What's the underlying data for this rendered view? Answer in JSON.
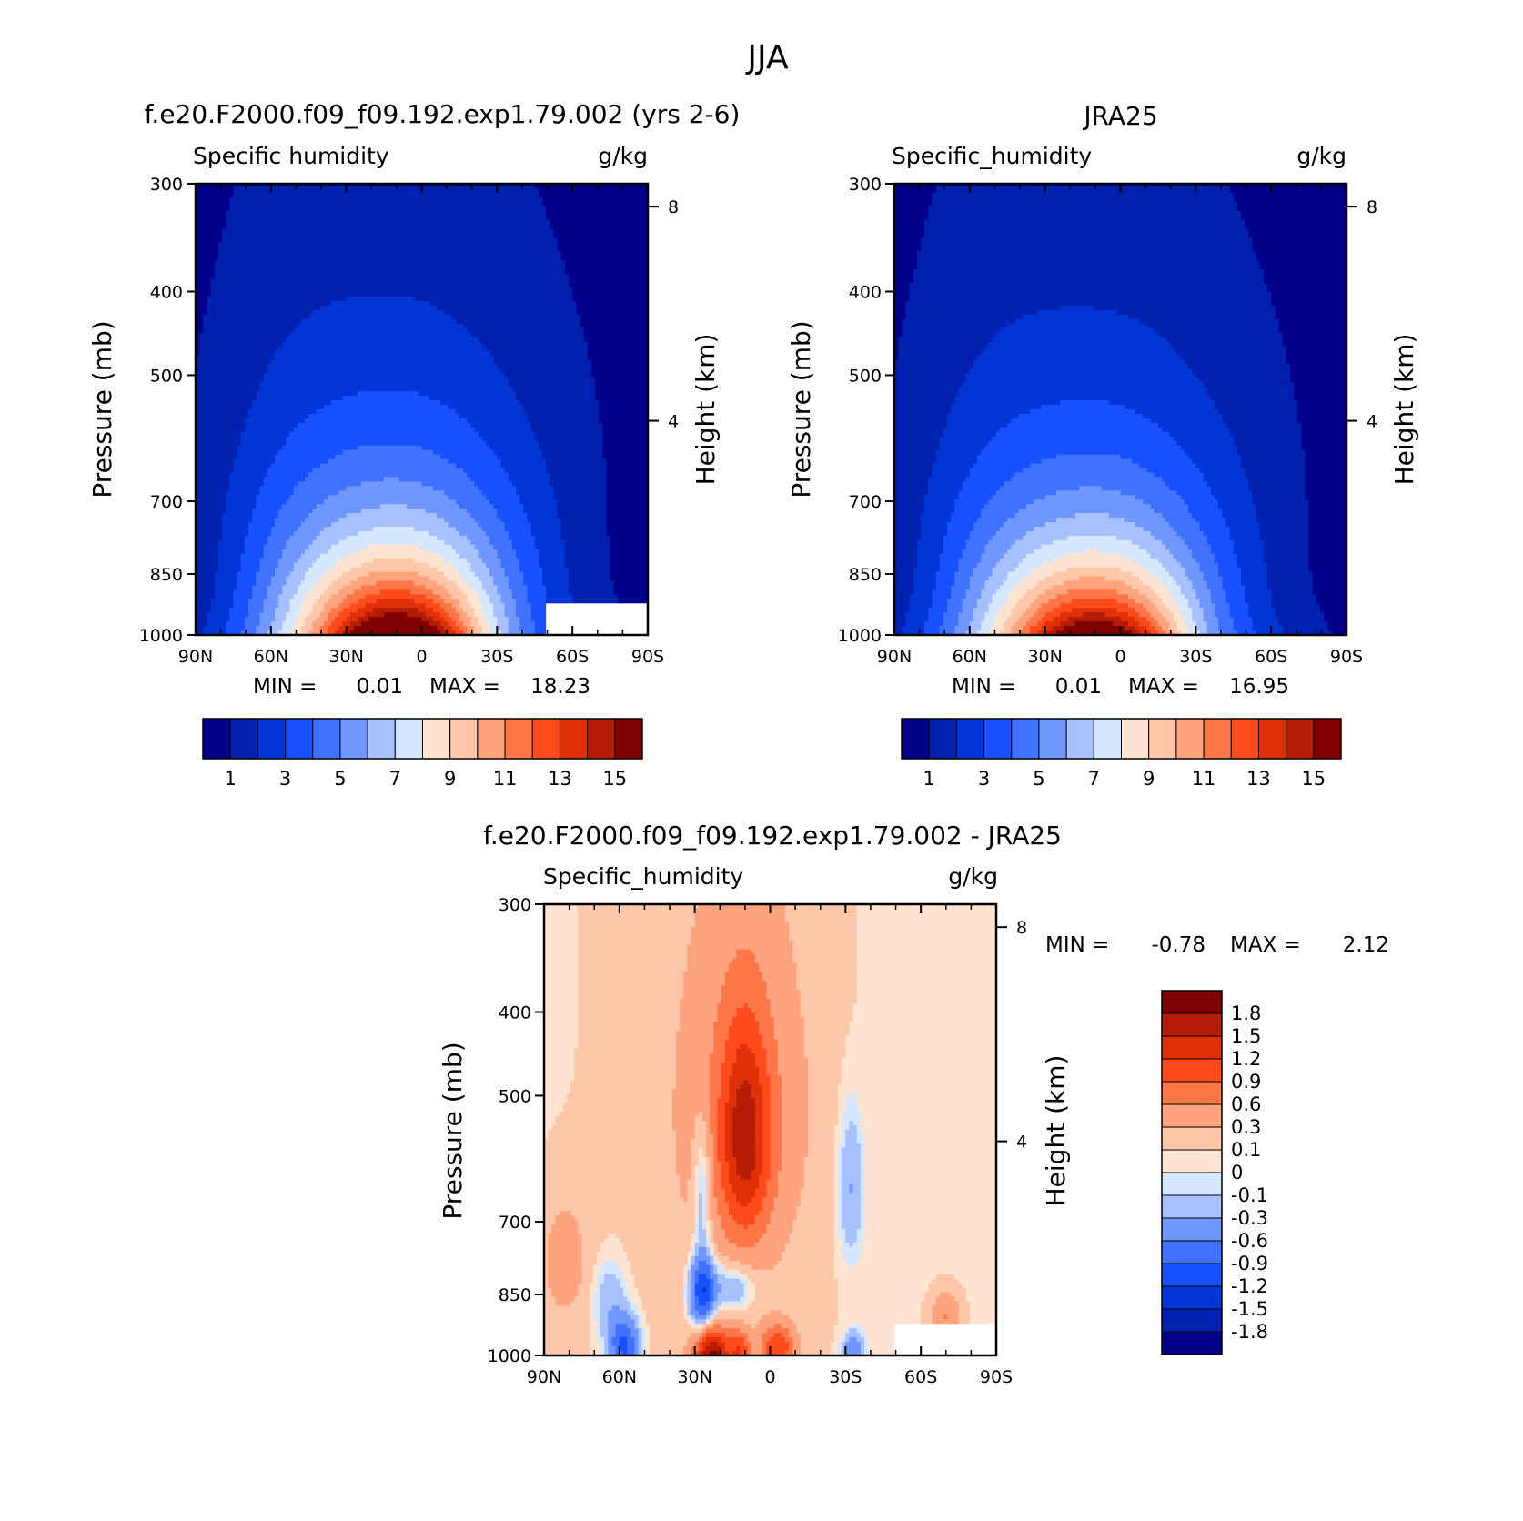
{
  "figure": {
    "title": "JJA",
    "min_label": "MIN =",
    "max_label": "MAX ="
  },
  "palettes": {
    "sequential": [
      "#00008b",
      "#0020b0",
      "#0035d6",
      "#1750ff",
      "#3e72ff",
      "#7096ff",
      "#a7c0ff",
      "#d6e8ff",
      "#ffe5d1",
      "#ffc7aa",
      "#ffa27e",
      "#ff7648",
      "#ff4a1c",
      "#e03008",
      "#b51c05",
      "#800000"
    ],
    "diverging": [
      "#800000",
      "#b51c05",
      "#e03008",
      "#ff4a1c",
      "#ff7648",
      "#ffa27e",
      "#ffc7aa",
      "#ffe5d1",
      "#d6e8ff",
      "#a7c0ff",
      "#7096ff",
      "#3e72ff",
      "#1750ff",
      "#0035d6",
      "#0020b0",
      "#00008b"
    ]
  },
  "chart_data": [
    {
      "type": "heatmap",
      "name": "panel-model",
      "title": "f.e20.F2000.f09_f09.192.exp1.79.002 (yrs 2-6)",
      "left_label": "Specific humidity",
      "right_label": "g/kg",
      "ylabel": "Pressure (mb)",
      "y2label": "Height (km)",
      "x_ticks": [
        "90N",
        "60N",
        "30N",
        "0",
        "30S",
        "60S",
        "90S"
      ],
      "x_range": [
        90,
        -90
      ],
      "y_ticks": [
        300,
        400,
        500,
        700,
        850,
        1000
      ],
      "y_range": [
        300,
        1000
      ],
      "y2_ticks": [
        8,
        4
      ],
      "min": "0.01",
      "max": "18.23",
      "colorbar_ticks": [
        "1",
        "3",
        "5",
        "7",
        "9",
        "11",
        "13",
        "15"
      ],
      "levels": [
        1,
        2,
        3,
        4,
        5,
        6,
        7,
        8,
        9,
        10,
        11,
        12,
        13,
        14,
        15
      ],
      "field": {
        "peak_lat": 10,
        "peak_value": 18.23,
        "surface_width_deg": 32,
        "scale_height_hpa": 265,
        "top_value": 0.3,
        "missing_south_of": -50,
        "missing_below_hpa": 920
      }
    },
    {
      "type": "heatmap",
      "name": "panel-obs",
      "title": "JRA25",
      "left_label": "Specific_humidity",
      "right_label": "g/kg",
      "ylabel": "Pressure (mb)",
      "y2label": "Height (km)",
      "x_ticks": [
        "90N",
        "60N",
        "30N",
        "0",
        "30S",
        "60S",
        "90S"
      ],
      "x_range": [
        90,
        -90
      ],
      "y_ticks": [
        300,
        400,
        500,
        700,
        850,
        1000
      ],
      "y_range": [
        300,
        1000
      ],
      "y2_ticks": [
        8,
        4
      ],
      "min": "0.01",
      "max": "16.95",
      "colorbar_ticks": [
        "1",
        "3",
        "5",
        "7",
        "9",
        "11",
        "13",
        "15"
      ],
      "levels": [
        1,
        2,
        3,
        4,
        5,
        6,
        7,
        8,
        9,
        10,
        11,
        12,
        13,
        14,
        15
      ],
      "field": {
        "peak_lat": 10,
        "peak_value": 16.95,
        "surface_width_deg": 33,
        "scale_height_hpa": 270,
        "top_value": 0.3
      }
    },
    {
      "type": "heatmap",
      "name": "panel-diff",
      "title": "f.e20.F2000.f09_f09.192.exp1.79.002 - JRA25",
      "left_label": "Specific_humidity",
      "right_label": "g/kg",
      "ylabel": "Pressure (mb)",
      "y2label": "Height (km)",
      "x_ticks": [
        "90N",
        "60N",
        "30N",
        "0",
        "30S",
        "60S",
        "90S"
      ],
      "x_range": [
        90,
        -90
      ],
      "y_ticks": [
        300,
        400,
        500,
        700,
        850,
        1000
      ],
      "y_range": [
        300,
        1000
      ],
      "y2_ticks": [
        8,
        4
      ],
      "min": "-0.78",
      "max": "2.12",
      "colorbar_ticks": [
        "1.8",
        "1.5",
        "1.2",
        "0.9",
        "0.6",
        "0.3",
        "0.1",
        "0",
        "-0.1",
        "-0.3",
        "-0.6",
        "-0.9",
        "-1.2",
        "-1.5",
        "-1.8"
      ],
      "levels": [
        1.8,
        1.5,
        1.2,
        0.9,
        0.6,
        0.3,
        0.1,
        0,
        -0.1,
        -0.3,
        -0.6,
        -0.9,
        -1.2,
        -1.5,
        -1.8
      ],
      "field": {
        "background": 0.05,
        "missing_south_of": -50,
        "missing_below_hpa": 920
      }
    }
  ]
}
